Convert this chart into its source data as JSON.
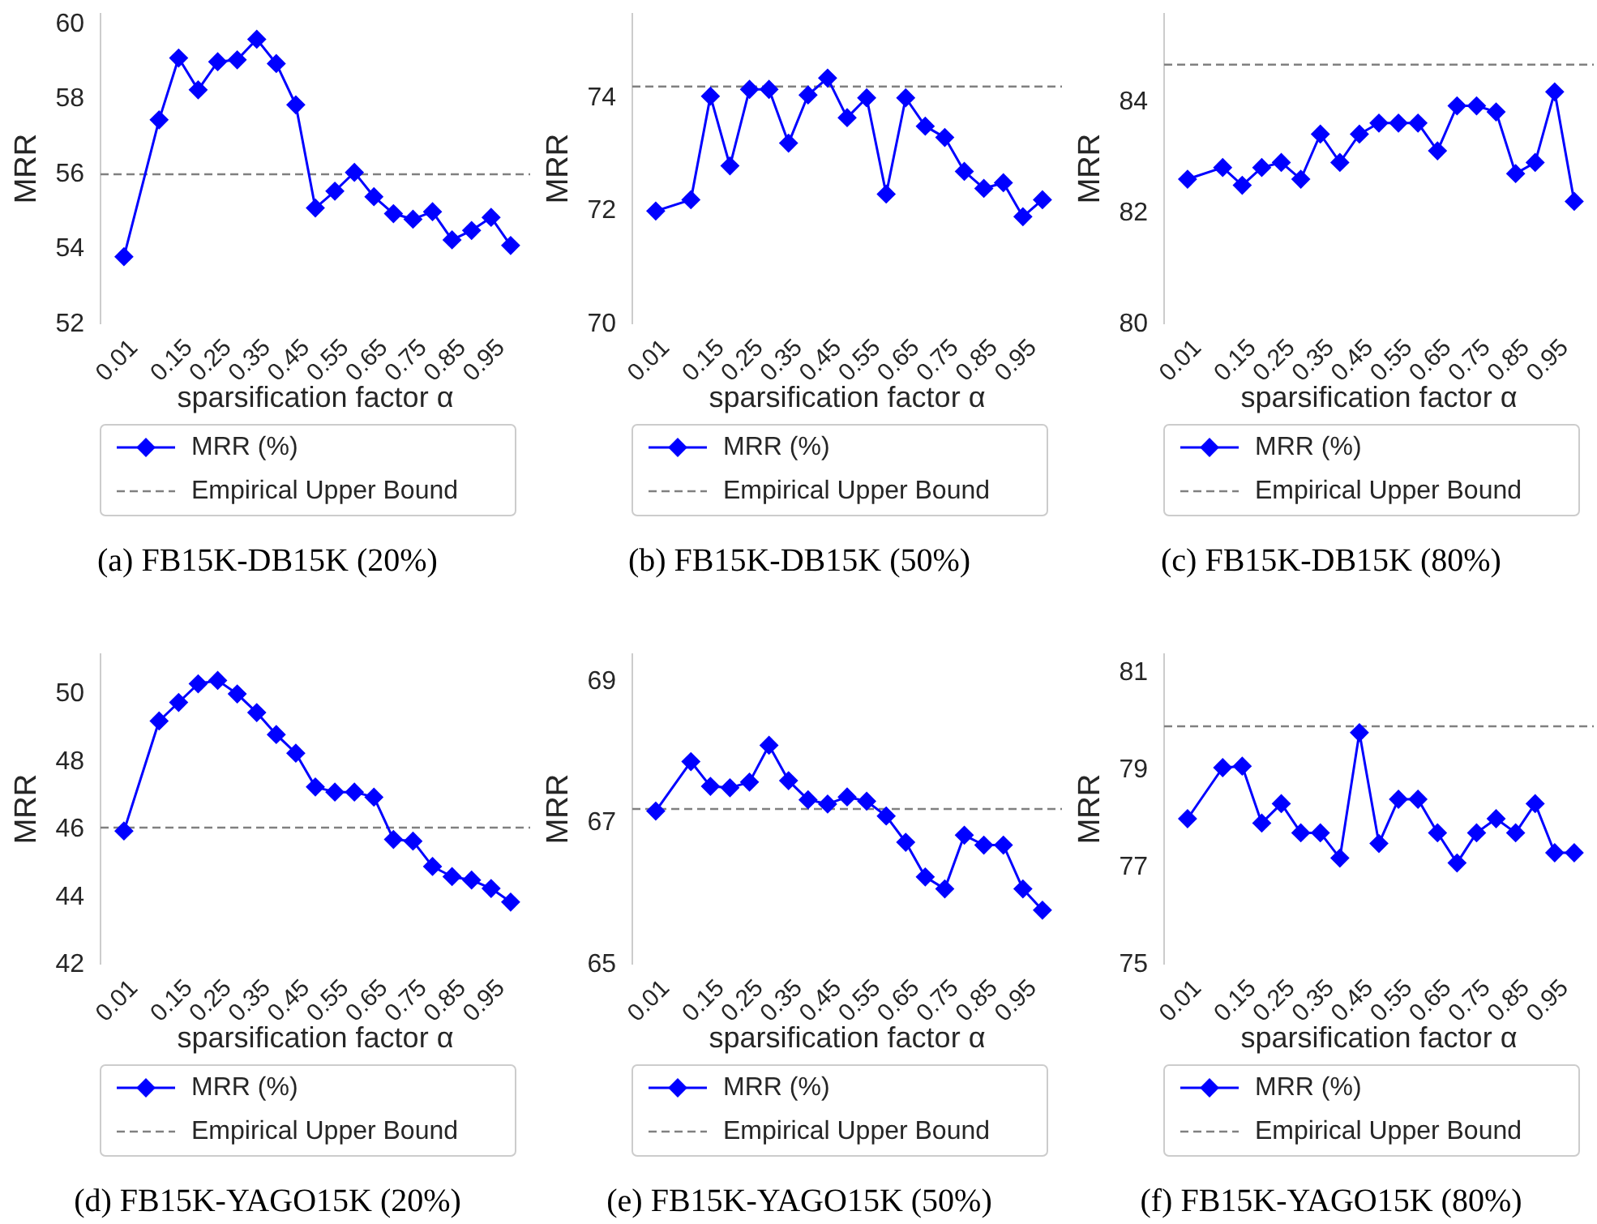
{
  "chart_data": [
    {
      "type": "line",
      "title": "(a) FB15K-DB15K (20%)",
      "xlabel": "sparsification factor α",
      "ylabel": "MRR",
      "x": [
        0.01,
        0.1,
        0.15,
        0.2,
        0.25,
        0.3,
        0.35,
        0.4,
        0.45,
        0.5,
        0.55,
        0.6,
        0.65,
        0.7,
        0.75,
        0.8,
        0.85,
        0.9,
        0.95,
        1.0
      ],
      "series": [
        {
          "name": "MRR (%)",
          "color": "#0000ff",
          "values": [
            53.8,
            57.45,
            59.1,
            58.25,
            59.0,
            59.05,
            59.6,
            58.95,
            57.85,
            55.1,
            55.55,
            56.05,
            55.4,
            54.95,
            54.8,
            55.0,
            54.25,
            54.5,
            54.85,
            54.1
          ]
        }
      ],
      "ref_lines": [
        {
          "axis": "y",
          "value": 56,
          "label": "Empirical Upper Bound",
          "color": "#808080",
          "line_style": "dashed"
        }
      ],
      "xlim": [
        -0.05,
        1.05
      ],
      "xticks": [
        0.01,
        0.15,
        0.25,
        0.35,
        0.45,
        0.55,
        0.65,
        0.75,
        0.85,
        0.95
      ],
      "ylim": [
        52,
        60.3
      ],
      "yticks": [
        52,
        54,
        56,
        58,
        60
      ],
      "marker": "diamond",
      "line_style": "solid",
      "legend": "bottom",
      "grid": false
    },
    {
      "type": "line",
      "title": "(b) FB15K-DB15K (50%)",
      "xlabel": "sparsification factor α",
      "ylabel": "MRR",
      "x": [
        0.01,
        0.1,
        0.15,
        0.2,
        0.25,
        0.3,
        0.35,
        0.4,
        0.45,
        0.5,
        0.55,
        0.6,
        0.65,
        0.7,
        0.75,
        0.8,
        0.85,
        0.9,
        0.95,
        1.0
      ],
      "series": [
        {
          "name": "MRR (%)",
          "color": "#0000ff",
          "values": [
            72.0,
            72.2,
            74.03,
            72.8,
            74.15,
            74.15,
            73.2,
            74.05,
            74.35,
            73.65,
            74.0,
            72.3,
            74.0,
            73.5,
            73.3,
            72.7,
            72.4,
            72.5,
            71.9,
            72.2
          ]
        }
      ],
      "ref_lines": [
        {
          "axis": "y",
          "value": 74.2,
          "label": "Empirical Upper Bound",
          "color": "#808080",
          "line_style": "dashed"
        }
      ],
      "xlim": [
        -0.05,
        1.05
      ],
      "xticks": [
        0.01,
        0.15,
        0.25,
        0.35,
        0.45,
        0.55,
        0.65,
        0.75,
        0.85,
        0.95
      ],
      "ylim": [
        70,
        75.5
      ],
      "yticks": [
        70,
        72,
        74
      ],
      "marker": "diamond",
      "line_style": "solid",
      "legend": "bottom",
      "grid": false
    },
    {
      "type": "line",
      "title": "(c) FB15K-DB15K (80%)",
      "xlabel": "sparsification factor α",
      "ylabel": "MRR",
      "x": [
        0.01,
        0.1,
        0.15,
        0.2,
        0.25,
        0.3,
        0.35,
        0.4,
        0.45,
        0.5,
        0.55,
        0.6,
        0.65,
        0.7,
        0.75,
        0.8,
        0.85,
        0.9,
        0.95,
        1.0
      ],
      "series": [
        {
          "name": "MRR (%)",
          "color": "#0000ff",
          "values": [
            82.61,
            82.82,
            82.5,
            82.82,
            82.91,
            82.61,
            83.42,
            82.91,
            83.42,
            83.62,
            83.62,
            83.62,
            83.12,
            83.93,
            83.93,
            83.82,
            82.71,
            82.91,
            84.18,
            82.21
          ]
        }
      ],
      "ref_lines": [
        {
          "axis": "y",
          "value": 84.67,
          "label": "Empirical Upper Bound",
          "color": "#808080",
          "line_style": "dashed"
        }
      ],
      "xlim": [
        -0.05,
        1.05
      ],
      "xticks": [
        0.01,
        0.15,
        0.25,
        0.35,
        0.45,
        0.55,
        0.65,
        0.75,
        0.85,
        0.95
      ],
      "ylim": [
        80,
        85.6
      ],
      "yticks": [
        80,
        82,
        84
      ],
      "marker": "diamond",
      "line_style": "solid",
      "legend": "bottom",
      "grid": false
    },
    {
      "type": "line",
      "title": "(d) FB15K-YAGO15K (20%)",
      "xlabel": "sparsification factor α",
      "ylabel": "MRR",
      "x": [
        0.01,
        0.1,
        0.15,
        0.2,
        0.25,
        0.3,
        0.35,
        0.4,
        0.45,
        0.5,
        0.55,
        0.6,
        0.65,
        0.7,
        0.75,
        0.8,
        0.85,
        0.9,
        0.95,
        1.0
      ],
      "series": [
        {
          "name": "MRR (%)",
          "color": "#0000ff",
          "values": [
            45.95,
            49.2,
            49.75,
            50.3,
            50.4,
            50.0,
            49.45,
            48.8,
            48.25,
            47.25,
            47.1,
            47.1,
            46.95,
            45.7,
            45.65,
            44.9,
            44.6,
            44.5,
            44.25,
            43.85
          ]
        }
      ],
      "ref_lines": [
        {
          "axis": "y",
          "value": 46.05,
          "label": "Empirical Upper Bound",
          "color": "#808080",
          "line_style": "dashed"
        }
      ],
      "xlim": [
        -0.05,
        1.05
      ],
      "xticks": [
        0.01,
        0.15,
        0.25,
        0.35,
        0.45,
        0.55,
        0.65,
        0.75,
        0.85,
        0.95
      ],
      "ylim": [
        42,
        51.2
      ],
      "yticks": [
        42,
        44,
        46,
        48,
        50
      ],
      "marker": "diamond",
      "line_style": "solid",
      "legend": "bottom",
      "grid": false
    },
    {
      "type": "line",
      "title": "(e) FB15K-YAGO15K (50%)",
      "xlabel": "sparsification factor α",
      "ylabel": "MRR",
      "x": [
        0.01,
        0.1,
        0.15,
        0.2,
        0.25,
        0.3,
        0.35,
        0.4,
        0.45,
        0.5,
        0.55,
        0.6,
        0.65,
        0.7,
        0.75,
        0.8,
        0.85,
        0.9,
        0.95,
        1.0
      ],
      "series": [
        {
          "name": "MRR (%)",
          "color": "#0000ff",
          "values": [
            67.17,
            67.87,
            67.52,
            67.5,
            67.58,
            68.1,
            67.6,
            67.33,
            67.27,
            67.37,
            67.31,
            67.1,
            66.73,
            66.24,
            66.07,
            66.83,
            66.69,
            66.69,
            66.07,
            65.77
          ]
        }
      ],
      "ref_lines": [
        {
          "axis": "y",
          "value": 67.2,
          "label": "Empirical Upper Bound",
          "color": "#808080",
          "line_style": "dashed"
        }
      ],
      "xlim": [
        -0.05,
        1.05
      ],
      "xticks": [
        0.01,
        0.15,
        0.25,
        0.35,
        0.45,
        0.55,
        0.65,
        0.75,
        0.85,
        0.95
      ],
      "ylim": [
        65,
        69.4
      ],
      "yticks": [
        65,
        67,
        69
      ],
      "marker": "diamond",
      "line_style": "solid",
      "legend": "bottom",
      "grid": false
    },
    {
      "type": "line",
      "title": "(f) FB15K-YAGO15K (80%)",
      "xlabel": "sparsification factor α",
      "ylabel": "MRR",
      "x": [
        0.01,
        0.1,
        0.15,
        0.2,
        0.25,
        0.3,
        0.35,
        0.4,
        0.45,
        0.5,
        0.55,
        0.6,
        0.65,
        0.7,
        0.75,
        0.8,
        0.85,
        0.9,
        0.95,
        1.0
      ],
      "series": [
        {
          "name": "MRR (%)",
          "color": "#0000ff",
          "values": [
            78.0,
            79.05,
            79.08,
            77.91,
            78.31,
            77.71,
            77.71,
            77.19,
            79.77,
            77.49,
            78.4,
            78.4,
            77.71,
            77.09,
            77.71,
            78.0,
            77.71,
            78.31,
            77.3,
            77.3
          ]
        }
      ],
      "ref_lines": [
        {
          "axis": "y",
          "value": 79.9,
          "label": "Empirical Upper Bound",
          "color": "#808080",
          "line_style": "dashed"
        }
      ],
      "xlim": [
        -0.05,
        1.05
      ],
      "xticks": [
        0.01,
        0.15,
        0.25,
        0.35,
        0.45,
        0.55,
        0.65,
        0.75,
        0.85,
        0.95
      ],
      "ylim": [
        75,
        81.4
      ],
      "yticks": [
        75,
        77,
        79,
        81
      ],
      "marker": "diamond",
      "line_style": "solid",
      "legend": "bottom",
      "grid": false
    }
  ]
}
